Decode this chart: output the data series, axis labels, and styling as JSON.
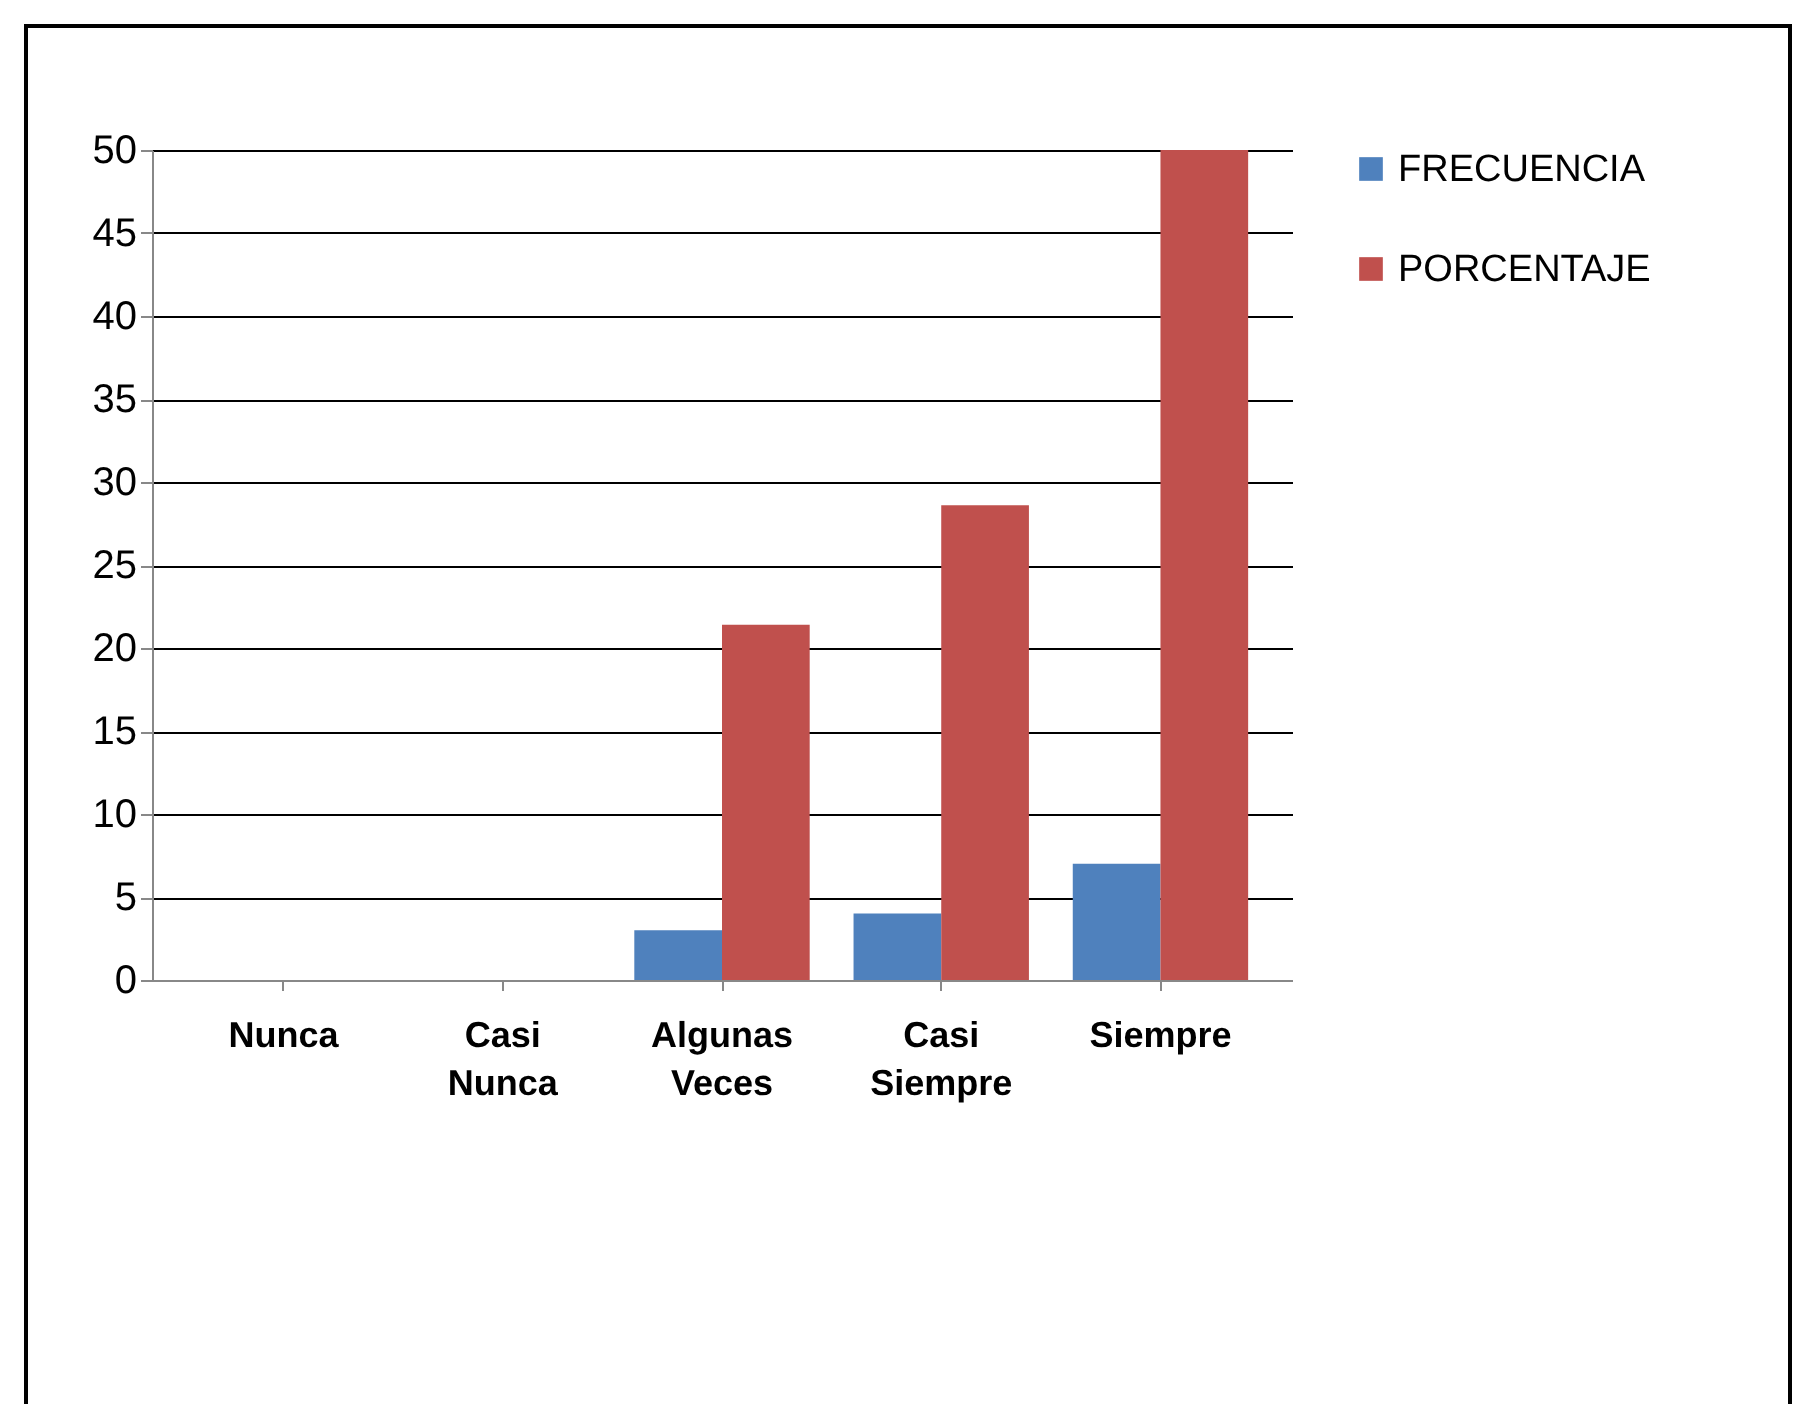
{
  "chart_data": {
    "type": "bar",
    "categories": [
      "Nunca",
      "Casi Nunca",
      "Algunas Veces",
      "Casi Siempre",
      "Siempre"
    ],
    "series": [
      {
        "name": "FRECUENCIA",
        "color": "#4f81bd",
        "values": [
          0,
          0,
          3,
          4,
          7
        ]
      },
      {
        "name": "PORCENTAJE",
        "color": "#c0504d",
        "values": [
          0,
          0,
          21.4,
          28.6,
          50
        ]
      }
    ],
    "ylim": [
      0,
      50
    ],
    "yticks": [
      0,
      5,
      10,
      15,
      20,
      25,
      30,
      35,
      40,
      45,
      50
    ],
    "grid": "y",
    "legend": "right"
  }
}
